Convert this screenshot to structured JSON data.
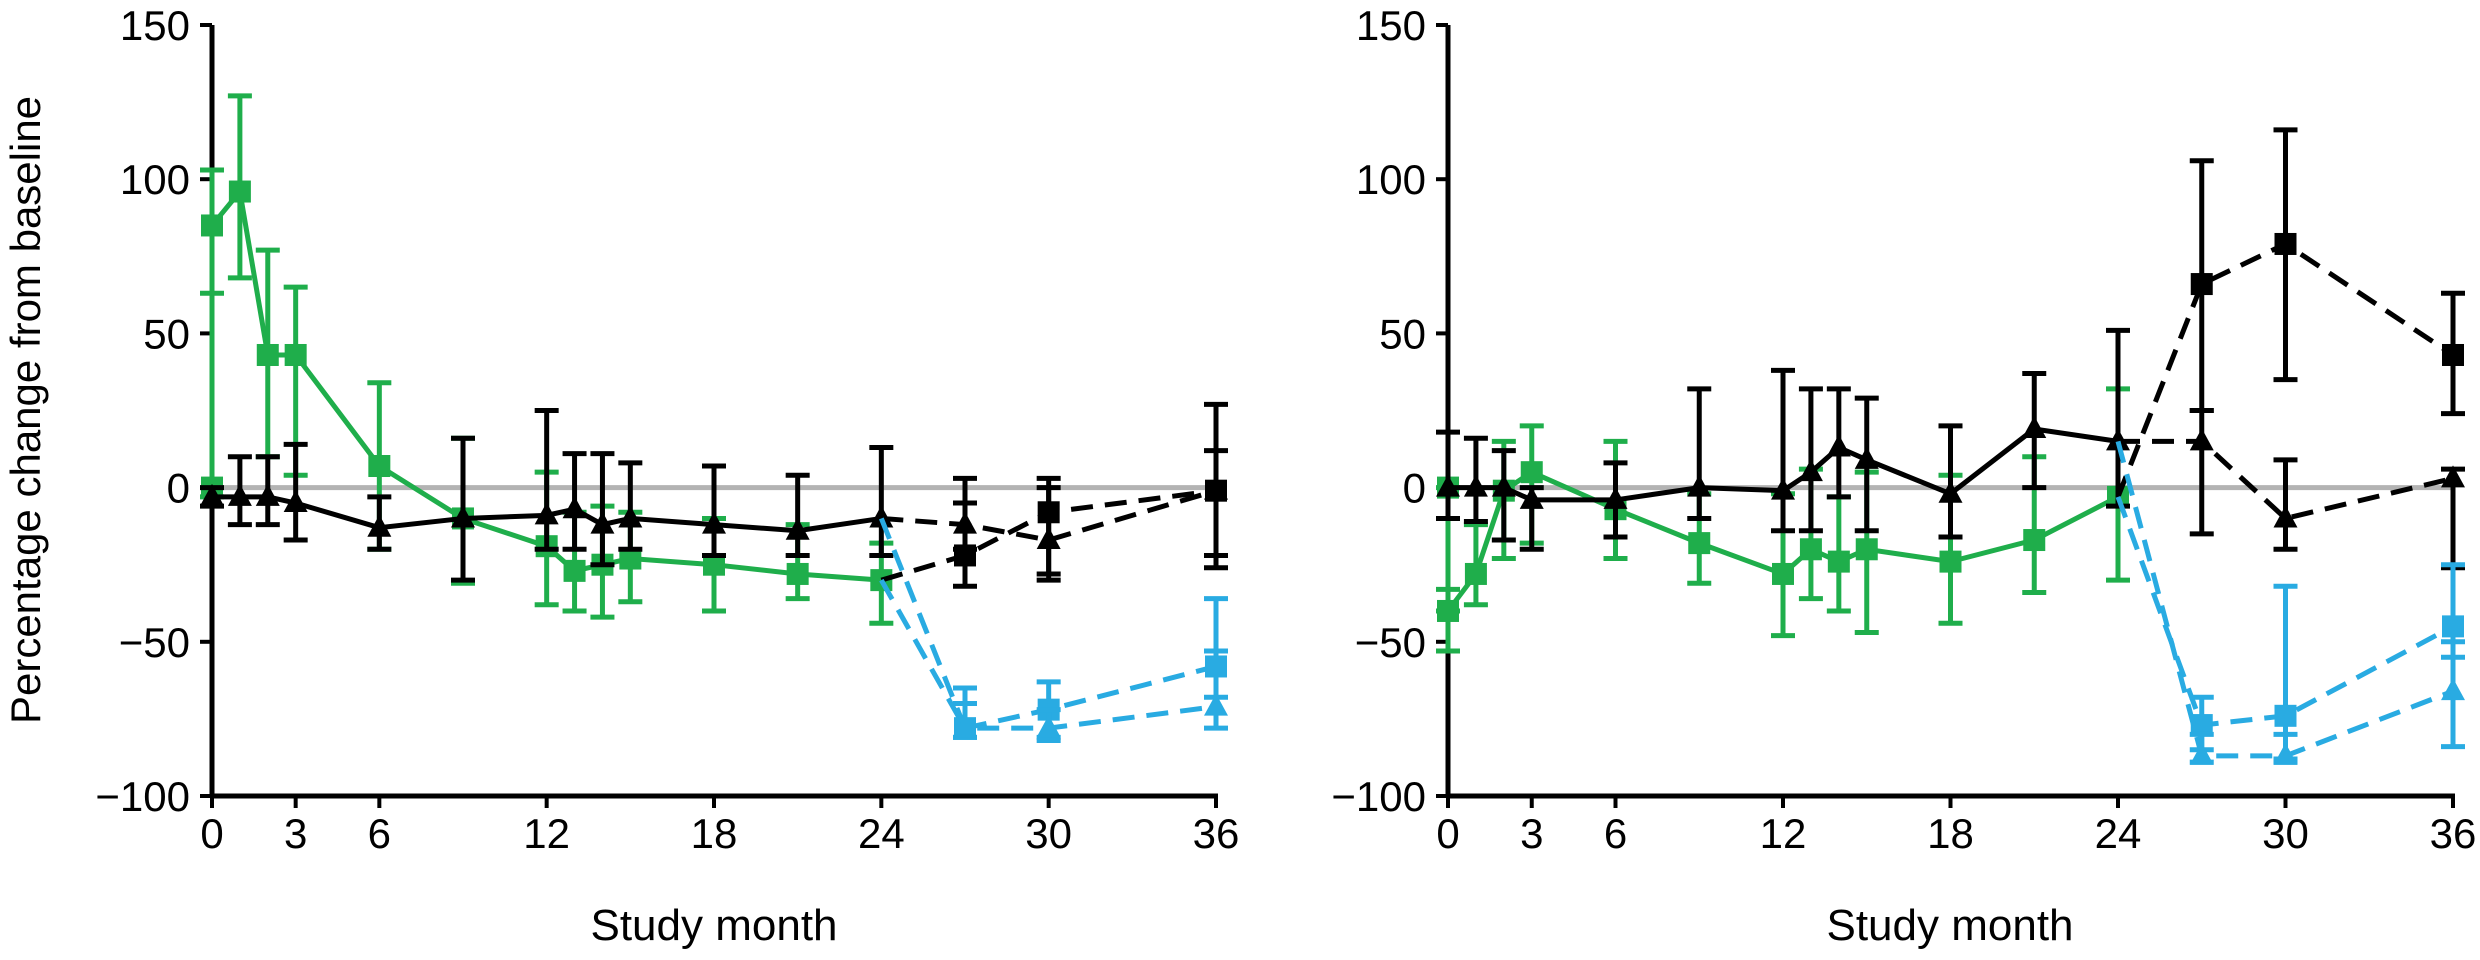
{
  "chart_data": [
    {
      "type": "line",
      "panel": "left",
      "xlabel": "Study month",
      "ylabel": "Percentage change from baseline",
      "xlim": [
        0,
        36
      ],
      "ylim": [
        -100,
        150
      ],
      "xticks": [
        0,
        3,
        6,
        12,
        18,
        24,
        30,
        36
      ],
      "xtick_labels": [
        "0",
        "3",
        "6",
        "12",
        "18",
        "24",
        "30",
        "36"
      ],
      "yticks": [
        -100,
        -50,
        0,
        50,
        100,
        150
      ],
      "ytick_labels": [
        "−100",
        "−50",
        "0",
        "50",
        "100",
        "150"
      ],
      "reference_line": 0,
      "grid": false,
      "series": [
        {
          "name": "green-squares",
          "color": "#1fae4b",
          "marker": "square",
          "dash": false,
          "points": [
            {
              "x": 0,
              "y": 0,
              "lo": -3,
              "hi": 103
            },
            {
              "x": 0,
              "y": 85,
              "lo": 63,
              "hi": 103
            },
            {
              "x": 1,
              "y": 96,
              "lo": 68,
              "hi": 127
            },
            {
              "x": 2,
              "y": 43,
              "lo": 10,
              "hi": 77
            },
            {
              "x": 3,
              "y": 43,
              "lo": 4,
              "hi": 65
            },
            {
              "x": 6,
              "y": 7,
              "lo": -20,
              "hi": 34
            },
            {
              "x": 9,
              "y": -10,
              "lo": -31,
              "hi": 16
            },
            {
              "x": 12,
              "y": -19,
              "lo": -38,
              "hi": 5
            },
            {
              "x": 13,
              "y": -27,
              "lo": -40,
              "hi": -8
            },
            {
              "x": 14,
              "y": -25,
              "lo": -42,
              "hi": -6
            },
            {
              "x": 15,
              "y": -23,
              "lo": -37,
              "hi": -8
            },
            {
              "x": 18,
              "y": -25,
              "lo": -40,
              "hi": -10
            },
            {
              "x": 21,
              "y": -28,
              "lo": -36,
              "hi": -12
            },
            {
              "x": 24,
              "y": -30,
              "lo": -44,
              "hi": -18
            }
          ]
        },
        {
          "name": "black-triangles",
          "color": "#000000",
          "marker": "triangle",
          "dash": false,
          "points": [
            {
              "x": 0,
              "y": -3,
              "lo": -6,
              "hi": 0
            },
            {
              "x": 1,
              "y": -3,
              "lo": -12,
              "hi": 10
            },
            {
              "x": 2,
              "y": -3,
              "lo": -12,
              "hi": 10
            },
            {
              "x": 3,
              "y": -5,
              "lo": -17,
              "hi": 14
            },
            {
              "x": 6,
              "y": -13,
              "lo": -20,
              "hi": -3
            },
            {
              "x": 9,
              "y": -10,
              "lo": -30,
              "hi": 16
            },
            {
              "x": 12,
              "y": -9,
              "lo": -20,
              "hi": 25
            },
            {
              "x": 13,
              "y": -7,
              "lo": -20,
              "hi": 11
            },
            {
              "x": 14,
              "y": -12,
              "lo": -25,
              "hi": 11
            },
            {
              "x": 15,
              "y": -10,
              "lo": -20,
              "hi": 8
            },
            {
              "x": 18,
              "y": -12,
              "lo": -22,
              "hi": 7
            },
            {
              "x": 21,
              "y": -14,
              "lo": -22,
              "hi": 4
            },
            {
              "x": 24,
              "y": -10,
              "lo": -22,
              "hi": 13
            }
          ]
        },
        {
          "name": "black-squares-dashed",
          "color": "#000000",
          "marker": "square",
          "dash": true,
          "points": [
            {
              "x": 24,
              "y": -30
            },
            {
              "x": 27,
              "y": -22,
              "lo": -32,
              "hi": 3
            },
            {
              "x": 30,
              "y": -8,
              "lo": -28,
              "hi": 3
            },
            {
              "x": 36,
              "y": -1,
              "lo": -26,
              "hi": 27
            }
          ]
        },
        {
          "name": "black-triangles-dashed",
          "color": "#000000",
          "marker": "triangle",
          "dash": true,
          "points": [
            {
              "x": 24,
              "y": -10
            },
            {
              "x": 27,
              "y": -12,
              "lo": -20,
              "hi": -5
            },
            {
              "x": 30,
              "y": -17,
              "lo": -30,
              "hi": 0
            },
            {
              "x": 36,
              "y": -1,
              "lo": -22,
              "hi": 12
            }
          ]
        },
        {
          "name": "blue-squares-dashed",
          "color": "#29abe2",
          "marker": "square",
          "dash": true,
          "points": [
            {
              "x": 24,
              "y": -30
            },
            {
              "x": 27,
              "y": -78,
              "lo": -81,
              "hi": -65
            },
            {
              "x": 30,
              "y": -72,
              "lo": -81,
              "hi": -63
            },
            {
              "x": 36,
              "y": -58,
              "lo": -68,
              "hi": -36
            }
          ]
        },
        {
          "name": "blue-triangles-dashed",
          "color": "#29abe2",
          "marker": "triangle",
          "dash": true,
          "points": [
            {
              "x": 24,
              "y": -10
            },
            {
              "x": 27,
              "y": -78,
              "lo": -81,
              "hi": -70
            },
            {
              "x": 30,
              "y": -78,
              "lo": -82,
              "hi": -72
            },
            {
              "x": 36,
              "y": -71,
              "lo": -78,
              "hi": -53
            }
          ]
        }
      ]
    },
    {
      "type": "line",
      "panel": "right",
      "xlabel": "Study month",
      "ylabel": "",
      "xlim": [
        0,
        36
      ],
      "ylim": [
        -100,
        150
      ],
      "xticks": [
        0,
        3,
        6,
        12,
        18,
        24,
        30,
        36
      ],
      "xtick_labels": [
        "0",
        "3",
        "6",
        "12",
        "18",
        "24",
        "30",
        "36"
      ],
      "yticks": [
        -100,
        -50,
        0,
        50,
        100,
        150
      ],
      "ytick_labels": [
        "−100",
        "−50",
        "0",
        "50",
        "100",
        "150"
      ],
      "reference_line": 0,
      "grid": false,
      "series": [
        {
          "name": "green-squares",
          "color": "#1fae4b",
          "marker": "square",
          "dash": false,
          "points": [
            {
              "x": 0,
              "y": 0,
              "lo": -40,
              "hi": 0
            },
            {
              "x": 0,
              "y": -40,
              "lo": -53,
              "hi": -33
            },
            {
              "x": 1,
              "y": -28,
              "lo": -38,
              "hi": -12
            },
            {
              "x": 2,
              "y": -1,
              "lo": -23,
              "hi": 15
            },
            {
              "x": 3,
              "y": 5,
              "lo": -18,
              "hi": 20
            },
            {
              "x": 6,
              "y": -7,
              "lo": -23,
              "hi": 15
            },
            {
              "x": 9,
              "y": -18,
              "lo": -31,
              "hi": -2
            },
            {
              "x": 12,
              "y": -28,
              "lo": -48,
              "hi": -2
            },
            {
              "x": 13,
              "y": -20,
              "lo": -36,
              "hi": 6
            },
            {
              "x": 14,
              "y": -24,
              "lo": -40,
              "hi": -3
            },
            {
              "x": 15,
              "y": -20,
              "lo": -47,
              "hi": 5
            },
            {
              "x": 18,
              "y": -24,
              "lo": -44,
              "hi": 4
            },
            {
              "x": 21,
              "y": -17,
              "lo": -34,
              "hi": 10
            },
            {
              "x": 24,
              "y": -3,
              "lo": -30,
              "hi": 32
            }
          ]
        },
        {
          "name": "black-triangles",
          "color": "#000000",
          "marker": "triangle",
          "dash": false,
          "points": [
            {
              "x": 0,
              "y": 0,
              "lo": -10,
              "hi": 18
            },
            {
              "x": 1,
              "y": 0,
              "lo": -11,
              "hi": 16
            },
            {
              "x": 2,
              "y": 0,
              "lo": -17,
              "hi": 12
            },
            {
              "x": 3,
              "y": -4,
              "lo": -20,
              "hi": 0
            },
            {
              "x": 6,
              "y": -4,
              "lo": -16,
              "hi": 8
            },
            {
              "x": 9,
              "y": 0,
              "lo": -10,
              "hi": 32
            },
            {
              "x": 12,
              "y": -1,
              "lo": -14,
              "hi": 38
            },
            {
              "x": 13,
              "y": 5,
              "lo": -14,
              "hi": 32
            },
            {
              "x": 14,
              "y": 13,
              "lo": -3,
              "hi": 32
            },
            {
              "x": 15,
              "y": 9,
              "lo": -14,
              "hi": 29
            },
            {
              "x": 18,
              "y": -2,
              "lo": -16,
              "hi": 20
            },
            {
              "x": 21,
              "y": 19,
              "lo": 0,
              "hi": 37
            },
            {
              "x": 24,
              "y": 15,
              "lo": -6,
              "hi": 51
            }
          ]
        },
        {
          "name": "black-squares-dashed",
          "color": "#000000",
          "marker": "square",
          "dash": true,
          "points": [
            {
              "x": 24,
              "y": -3
            },
            {
              "x": 27,
              "y": 66,
              "lo": 25,
              "hi": 106
            },
            {
              "x": 30,
              "y": 79,
              "lo": 35,
              "hi": 116
            },
            {
              "x": 36,
              "y": 43,
              "lo": 24,
              "hi": 63
            }
          ]
        },
        {
          "name": "black-triangles-dashed",
          "color": "#000000",
          "marker": "triangle",
          "dash": true,
          "points": [
            {
              "x": 24,
              "y": 15
            },
            {
              "x": 27,
              "y": 15,
              "lo": -15,
              "hi": 25
            },
            {
              "x": 30,
              "y": -10,
              "lo": -20,
              "hi": 9
            },
            {
              "x": 36,
              "y": 3,
              "lo": -26,
              "hi": 6
            }
          ]
        },
        {
          "name": "blue-squares-dashed",
          "color": "#29abe2",
          "marker": "square",
          "dash": true,
          "points": [
            {
              "x": 24,
              "y": -3
            },
            {
              "x": 27,
              "y": -77,
              "lo": -85,
              "hi": -68
            },
            {
              "x": 30,
              "y": -74,
              "lo": -88,
              "hi": -32
            },
            {
              "x": 36,
              "y": -45,
              "lo": -55,
              "hi": -25
            }
          ]
        },
        {
          "name": "blue-triangles-dashed",
          "color": "#29abe2",
          "marker": "triangle",
          "dash": true,
          "points": [
            {
              "x": 24,
              "y": 15
            },
            {
              "x": 27,
              "y": -87,
              "lo": -89,
              "hi": -80
            },
            {
              "x": 30,
              "y": -87,
              "lo": -89,
              "hi": -80
            },
            {
              "x": 36,
              "y": -66,
              "lo": -84,
              "hi": -50
            }
          ]
        }
      ]
    }
  ]
}
